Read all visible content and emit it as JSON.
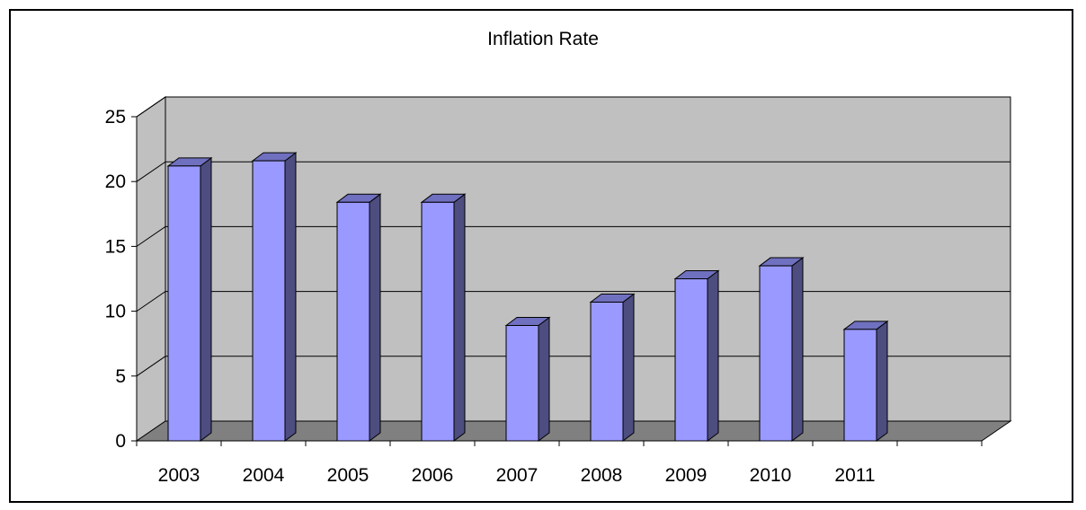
{
  "chart_data": {
    "type": "bar",
    "title": "Inflation Rate",
    "categories": [
      "2003",
      "2004",
      "2005",
      "2006",
      "2007",
      "2008",
      "2009",
      "2010",
      "2011"
    ],
    "values": [
      21.2,
      21.6,
      18.4,
      18.4,
      8.9,
      10.7,
      12.5,
      13.5,
      8.6
    ],
    "ylim": [
      0,
      25
    ],
    "yticks": [
      0,
      5,
      10,
      15,
      20,
      25
    ],
    "style": "3d-column",
    "grid": true,
    "legend": "none",
    "colors": {
      "bar_front": "#9999ff",
      "bar_side": "#4d4d80",
      "bar_top": "#7070c0",
      "back_wall": "#c0c0c0",
      "side_wall": "#c0c0c0",
      "floor": "#808080"
    }
  }
}
